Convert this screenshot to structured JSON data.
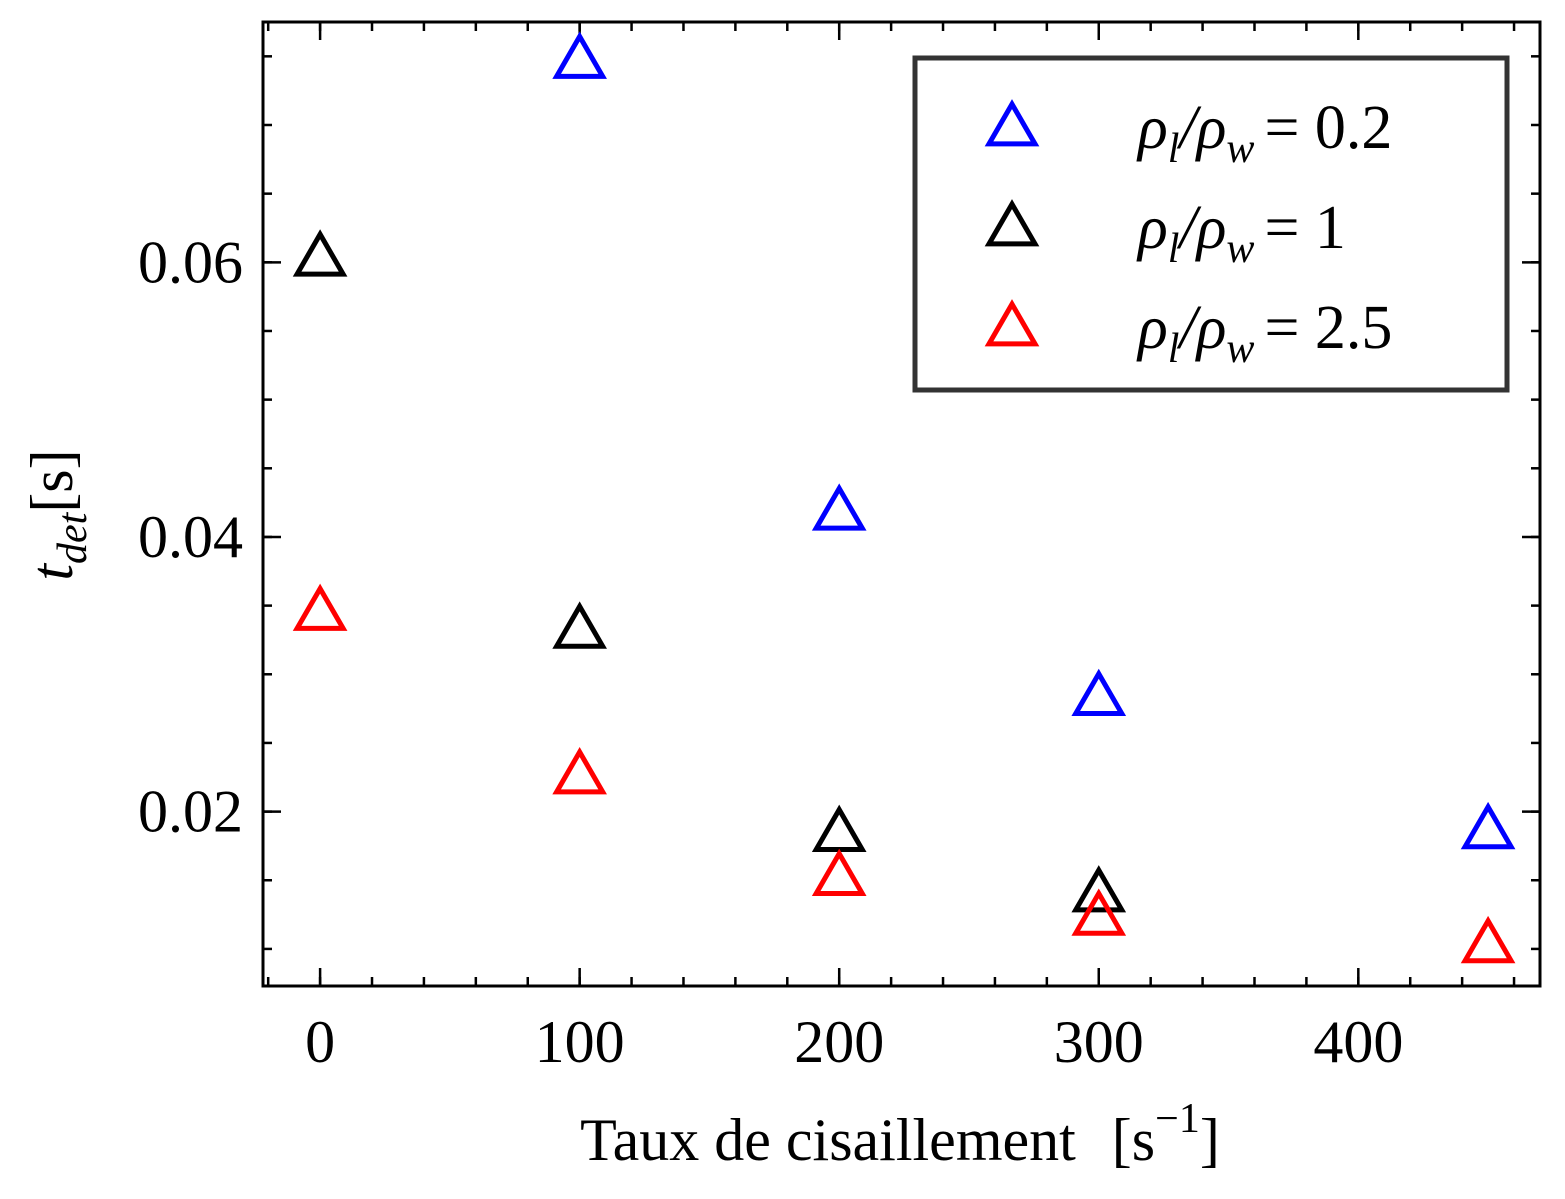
{
  "chart_data": {
    "type": "scatter",
    "xlabel": "Taux de cisaillement",
    "xlabel_unit": "[s",
    "xlabel_unit_exp": "−1",
    "xlabel_unit_close": "]",
    "ylabel_var": "t",
    "ylabel_sub": "det",
    "ylabel_unit": "[s]",
    "xlim": [
      -22,
      470
    ],
    "ylim": [
      0.0073,
      0.0775
    ],
    "x_ticks": [
      0,
      100,
      200,
      300,
      400
    ],
    "x_tick_labels": [
      "0",
      "100",
      "200",
      "300",
      "400"
    ],
    "y_ticks": [
      0.02,
      0.04,
      0.06
    ],
    "y_tick_labels": [
      "0.02",
      "0.04",
      "0.06"
    ],
    "x_minor_step": 20,
    "y_minor_step": 0.005,
    "grid": false,
    "legend_position": "top-right",
    "marker": "triangle-open",
    "series": [
      {
        "name": "ρl/ρw = 0.2",
        "legend_rho1": "ρ",
        "legend_sub1": "l",
        "legend_rho2": "/ρ",
        "legend_sub2": "w",
        "legend_eq": "= 0.2",
        "color": "#0000ff",
        "x": [
          100,
          200,
          300,
          450
        ],
        "y": [
          0.0747,
          0.0418,
          0.0283,
          0.0186
        ]
      },
      {
        "name": "ρl/ρw = 1",
        "legend_rho1": "ρ",
        "legend_sub1": "l",
        "legend_rho2": "/ρ",
        "legend_sub2": "w",
        "legend_eq": "= 1",
        "color": "#000000",
        "x": [
          0,
          100,
          200,
          300
        ],
        "y": [
          0.0603,
          0.0332,
          0.0184,
          0.014
        ]
      },
      {
        "name": "ρl/ρw = 2.5",
        "legend_rho1": "ρ",
        "legend_sub1": "l",
        "legend_rho2": "/ρ",
        "legend_sub2": "w",
        "legend_eq": "= 2.5",
        "color": "#ff0000",
        "x": [
          0,
          100,
          200,
          300,
          450
        ],
        "y": [
          0.0345,
          0.0226,
          0.0152,
          0.0123,
          0.0103
        ]
      }
    ]
  }
}
